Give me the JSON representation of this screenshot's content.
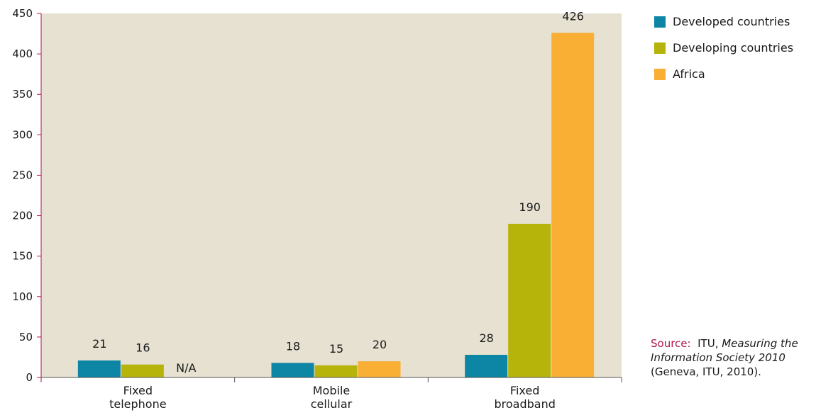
{
  "chart_data": {
    "type": "bar",
    "categories": [
      [
        "Fixed",
        "telephone"
      ],
      [
        "Mobile",
        "cellular"
      ],
      [
        "Fixed",
        "broadband"
      ]
    ],
    "series": [
      {
        "name": "Developed countries",
        "values": [
          21,
          18,
          28
        ],
        "labels": [
          "21",
          "18",
          "28"
        ],
        "color": "#0c86a4"
      },
      {
        "name": "Developing countries",
        "values": [
          16,
          15,
          190
        ],
        "labels": [
          "16",
          "15",
          "190"
        ],
        "color": "#b6b40b"
      },
      {
        "name": "Africa",
        "values": [
          null,
          20,
          426
        ],
        "labels": [
          "N/A",
          "20",
          "426"
        ],
        "color": "#f9ae34"
      }
    ],
    "yticks": [
      0,
      50,
      100,
      150,
      200,
      250,
      300,
      350,
      400,
      450
    ],
    "ylim": [
      0,
      450
    ],
    "plot_background": "#e6e1d1",
    "axis_color": "#b0154b",
    "legend_position": "right"
  },
  "source": {
    "label": "Source:",
    "prefix": "ITU, ",
    "title_italic": "Measuring the Information Society 2010",
    "suffix": "(Geneva, ITU, 2010)."
  }
}
